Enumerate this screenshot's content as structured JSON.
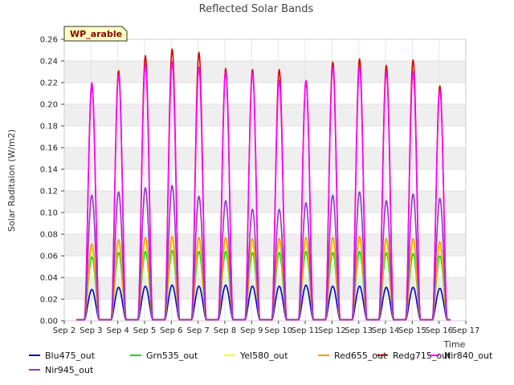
{
  "chart_data": {
    "type": "line",
    "title": "Reflected Solar Bands",
    "xlabel": "Time",
    "ylabel": "Solar Raditaion (W/m2)",
    "badge": "WP_arable",
    "ylim": [
      0,
      0.26
    ],
    "xlim": [
      2,
      17
    ],
    "yticks": [
      "0.00",
      "0.02",
      "0.04",
      "0.06",
      "0.08",
      "0.10",
      "0.12",
      "0.14",
      "0.16",
      "0.18",
      "0.20",
      "0.22",
      "0.24",
      "0.26"
    ],
    "xticks": [
      "Sep 2",
      "Sep 3",
      "Sep 4",
      "Sep 5",
      "Sep 6",
      "Sep 7",
      "Sep 8",
      "Sep 9",
      "Sep 10",
      "Sep 11",
      "Sep 12",
      "Sep 13",
      "Sep 14",
      "Sep 15",
      "Sep 16",
      "Sep 17"
    ],
    "days": [
      3,
      4,
      5,
      6,
      7,
      8,
      9,
      10,
      11,
      12,
      13,
      14,
      15,
      16
    ],
    "series": [
      {
        "name": "Blu475_out",
        "color": "#0000cc",
        "values": [
          0.028,
          0.03,
          0.031,
          0.032,
          0.031,
          0.032,
          0.031,
          0.031,
          0.032,
          0.031,
          0.031,
          0.03,
          0.03,
          0.029
        ]
      },
      {
        "name": "Grn535_out",
        "color": "#00dd00",
        "values": [
          0.058,
          0.062,
          0.063,
          0.064,
          0.063,
          0.063,
          0.062,
          0.062,
          0.063,
          0.062,
          0.063,
          0.062,
          0.061,
          0.059
        ]
      },
      {
        "name": "Yel580_out",
        "color": "#ffff00",
        "values": [
          0.066,
          0.07,
          0.072,
          0.073,
          0.072,
          0.072,
          0.071,
          0.071,
          0.072,
          0.072,
          0.073,
          0.071,
          0.071,
          0.068
        ]
      },
      {
        "name": "Red655_out",
        "color": "#ff9900",
        "values": [
          0.07,
          0.074,
          0.076,
          0.077,
          0.076,
          0.076,
          0.075,
          0.075,
          0.076,
          0.076,
          0.077,
          0.075,
          0.075,
          0.072
        ]
      },
      {
        "name": "Redg715_out",
        "color": "#dd0000",
        "values": [
          0.216,
          0.23,
          0.244,
          0.25,
          0.247,
          0.232,
          0.231,
          0.231,
          0.221,
          0.238,
          0.241,
          0.235,
          0.24,
          0.216
        ]
      },
      {
        "name": "Nir840_out",
        "color": "#ff00ff",
        "values": [
          0.219,
          0.226,
          0.236,
          0.238,
          0.233,
          0.229,
          0.228,
          0.221,
          0.221,
          0.233,
          0.234,
          0.229,
          0.229,
          0.212
        ]
      },
      {
        "name": "Nir945_out",
        "color": "#9933cc",
        "values": [
          0.115,
          0.118,
          0.122,
          0.124,
          0.114,
          0.11,
          0.102,
          0.102,
          0.108,
          0.115,
          0.118,
          0.11,
          0.116,
          0.112
        ]
      }
    ]
  }
}
